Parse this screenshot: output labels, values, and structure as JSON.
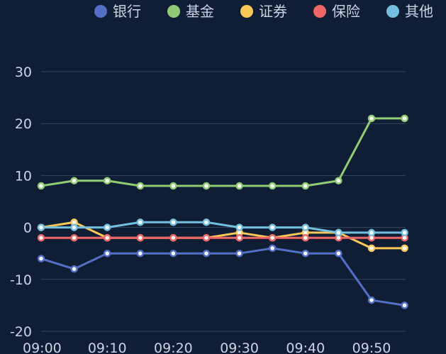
{
  "chart_data": {
    "type": "line",
    "title": "",
    "xlabel": "",
    "ylabel": "",
    "x": [
      "09:00",
      "09:05",
      "09:10",
      "09:15",
      "09:20",
      "09:25",
      "09:30",
      "09:35",
      "09:40",
      "09:45",
      "09:50",
      "09:55"
    ],
    "x_tick_labels": [
      "09:00",
      "09:10",
      "09:20",
      "09:30",
      "09:40",
      "09:50"
    ],
    "ylim": [
      -20,
      30
    ],
    "y_ticks": [
      -20,
      -10,
      0,
      10,
      20,
      30
    ],
    "grid": true,
    "legend_position": "top-right",
    "series": [
      {
        "name": "银行",
        "color": "#5470c6",
        "values": [
          -6,
          -8,
          -5,
          -5,
          -5,
          -5,
          -5,
          -4,
          -5,
          -5,
          -14,
          -15
        ]
      },
      {
        "name": "基金",
        "color": "#91cc75",
        "values": [
          8,
          9,
          9,
          8,
          8,
          8,
          8,
          8,
          8,
          9,
          21,
          21
        ]
      },
      {
        "name": "证券",
        "color": "#fac858",
        "values": [
          0,
          1,
          -2,
          -2,
          -2,
          -2,
          -1,
          -2,
          -1,
          -1,
          -4,
          -4
        ]
      },
      {
        "name": "保险",
        "color": "#ee6666",
        "values": [
          -2,
          -2,
          -2,
          -2,
          -2,
          -2,
          -2,
          -2,
          -2,
          -2,
          -2,
          -2
        ]
      },
      {
        "name": "其他",
        "color": "#73c0de",
        "values": [
          0,
          0,
          0,
          1,
          1,
          1,
          0,
          0,
          0,
          -1,
          -1,
          -1
        ]
      }
    ]
  },
  "colors": {
    "background": "#0f1e35",
    "grid": "#34455f",
    "text": "#c8d3e6"
  }
}
